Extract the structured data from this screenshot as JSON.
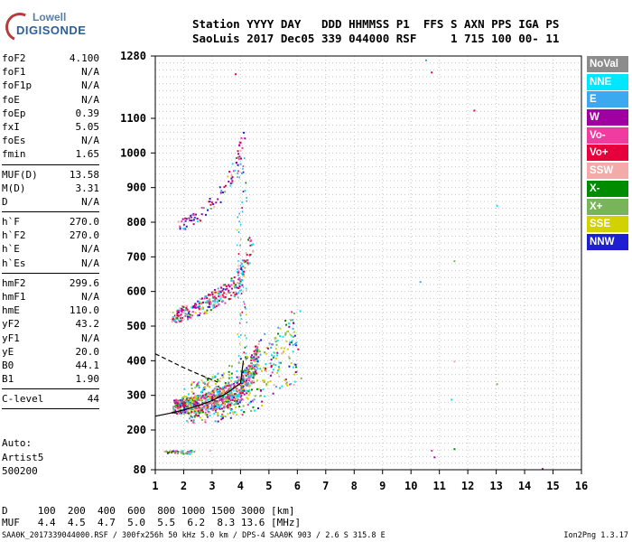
{
  "logo": {
    "line1": "Lowell",
    "line2": "DIGISONDE"
  },
  "header": {
    "line1": "Station YYYY DAY   DDD HHMMSS P1  FFS S AXN PPS IGA PS",
    "line2": "SaoLuis 2017 Dec05 339 044000 RSF     1 715 100 00- 11"
  },
  "params": [
    {
      "name": "foF2",
      "value": "4.100"
    },
    {
      "name": "foF1",
      "value": "N/A"
    },
    {
      "name": "foF1p",
      "value": "N/A"
    },
    {
      "name": "foE",
      "value": "N/A"
    },
    {
      "name": "foEp",
      "value": "0.39"
    },
    {
      "name": "fxI",
      "value": "5.05"
    },
    {
      "name": "foEs",
      "value": "N/A"
    },
    {
      "name": "fmin",
      "value": "1.65",
      "sep": true
    },
    {
      "name": "MUF(D)",
      "value": "13.58"
    },
    {
      "name": "M(D)",
      "value": "3.31"
    },
    {
      "name": "D",
      "value": "N/A",
      "sep": true
    },
    {
      "name": "h`F",
      "value": "270.0"
    },
    {
      "name": "h`F2",
      "value": "270.0"
    },
    {
      "name": "h`E",
      "value": "N/A"
    },
    {
      "name": "h`Es",
      "value": "N/A",
      "sep": true
    },
    {
      "name": "hmF2",
      "value": "299.6"
    },
    {
      "name": "hmF1",
      "value": "N/A"
    },
    {
      "name": "hmE",
      "value": "110.0"
    },
    {
      "name": "yF2",
      "value": "43.2"
    },
    {
      "name": "yF1",
      "value": "N/A"
    },
    {
      "name": "yE",
      "value": "20.0"
    },
    {
      "name": "B0",
      "value": "44.1"
    },
    {
      "name": "B1",
      "value": "1.90",
      "sep": true
    },
    {
      "name": "C-level",
      "value": "44"
    }
  ],
  "auto": {
    "line1": "Auto:",
    "line2": "Artist5",
    "line3": "500200"
  },
  "legend": [
    {
      "label": "NoVal",
      "color": "#8c8c8c"
    },
    {
      "label": "NNE",
      "color": "#00e6ff"
    },
    {
      "label": "E",
      "color": "#3ca8f0"
    },
    {
      "label": "W",
      "color": "#a000a0"
    },
    {
      "label": "Vo-",
      "color": "#f03ca0"
    },
    {
      "label": "Vo+",
      "color": "#e6003c"
    },
    {
      "label": "SSW",
      "color": "#f5aaaa"
    },
    {
      "label": "X-",
      "color": "#008c00"
    },
    {
      "label": "X+",
      "color": "#78b45a"
    },
    {
      "label": "SSE",
      "color": "#d2d200"
    },
    {
      "label": "NNW",
      "color": "#1e1ed2"
    }
  ],
  "bottom": {
    "row1_label": "D",
    "row1_values": "100  200  400  600  800 1000 1500 3000 [km]",
    "row2_label": "MUF",
    "row2_values": "4.4  4.5  4.7  5.0  5.5  6.2  8.3 13.6 [MHz]"
  },
  "footer": "SAA0K_2017339044000.RSF / 300fx256h 50 kHz 5.0 km / DPS-4 SAA0K 903 / 2.6 S 315.8 E",
  "version": "Ion2Png 1.3.17",
  "chart_data": {
    "type": "scatter",
    "xlabel": "",
    "ylabel": "",
    "xlim": [
      1,
      16
    ],
    "ylim": [
      80,
      1280
    ],
    "xticks": [
      "1",
      "2",
      "3",
      "4",
      "5",
      "6",
      "7",
      "8",
      "9",
      "10",
      "11",
      "12",
      "13",
      "14",
      "15",
      "16"
    ],
    "yticks": [
      "80",
      "200",
      "300",
      "400",
      "500",
      "600",
      "700",
      "800",
      "900",
      "1000",
      "1100",
      "1280"
    ],
    "grid": true,
    "traces": [
      {
        "name": "F2 o-trace (1st)",
        "x": [
          1.6,
          2.0,
          2.5,
          3.0,
          3.5,
          3.8,
          4.0,
          4.2,
          4.4,
          4.6
        ],
        "y": [
          270,
          272,
          278,
          288,
          300,
          310,
          325,
          345,
          380,
          430
        ]
      },
      {
        "name": "F2 x-trace",
        "x": [
          2.0,
          2.5,
          3.0,
          3.5,
          4.0,
          4.5,
          5.0,
          5.5,
          6.0
        ],
        "y": [
          280,
          285,
          292,
          305,
          325,
          350,
          390,
          420,
          450
        ]
      },
      {
        "name": "F2 (2nd multiple)",
        "x": [
          1.6,
          2.0,
          2.5,
          3.0,
          3.5,
          3.8,
          4.0,
          4.2,
          4.4
        ],
        "y": [
          530,
          540,
          555,
          575,
          600,
          620,
          650,
          690,
          760
        ]
      },
      {
        "name": "F2 (3rd multiple)",
        "x": [
          1.8,
          2.2,
          2.6,
          3.0,
          3.4,
          3.8,
          4.1
        ],
        "y": [
          790,
          805,
          830,
          860,
          900,
          960,
          1050
        ]
      },
      {
        "name": "Es (low)",
        "x": [
          1.3,
          1.6,
          2.0,
          2.2,
          2.4
        ],
        "y": [
          135,
          135,
          135,
          135,
          135
        ]
      }
    ],
    "model_profile": {
      "x": [
        1.0,
        1.5,
        2.0,
        2.5,
        3.0,
        3.5,
        4.0,
        4.1
      ],
      "y": [
        240,
        248,
        258,
        270,
        285,
        305,
        335,
        400
      ]
    },
    "fitted_trace": {
      "x": [
        1.0,
        1.5,
        2.0,
        2.5,
        3.0,
        3.2
      ],
      "y": [
        420,
        400,
        380,
        362,
        345,
        338
      ]
    }
  }
}
